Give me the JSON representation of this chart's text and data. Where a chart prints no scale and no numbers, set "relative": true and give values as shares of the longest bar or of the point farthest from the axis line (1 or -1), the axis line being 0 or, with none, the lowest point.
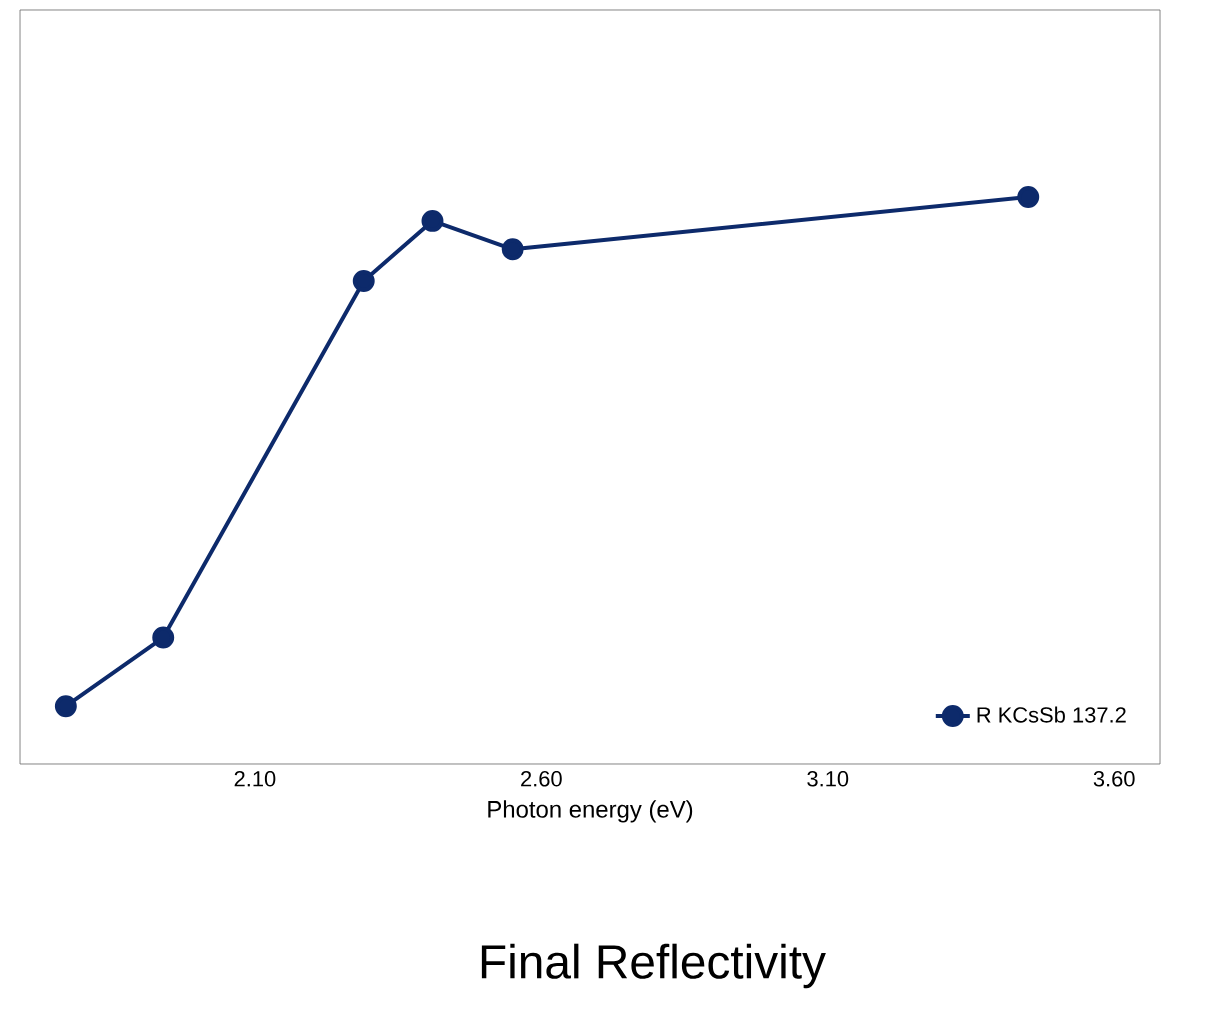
{
  "chart_data": {
    "type": "line",
    "title": "Final Reflectivity",
    "xlabel": "Photon energy (eV)",
    "relative": true,
    "x": [
      1.77,
      1.94,
      2.29,
      2.41,
      2.55,
      3.45
    ],
    "series": [
      {
        "name": "R KCsSb 137.2",
        "color": "#0d2a6b",
        "values": [
          0.102,
          0.223,
          0.852,
          0.958,
          0.908,
          1
        ]
      }
    ],
    "xlim": [
      1.69,
      3.68
    ],
    "xticks": [
      {
        "value": 2.1,
        "label": "2.10"
      },
      {
        "value": 2.6,
        "label": "2.60"
      },
      {
        "value": 3.1,
        "label": "3.10"
      },
      {
        "value": 3.6,
        "label": "3.60"
      }
    ],
    "marker": "circle",
    "line_style": "solid",
    "legend": "bottom right",
    "grid": false
  }
}
